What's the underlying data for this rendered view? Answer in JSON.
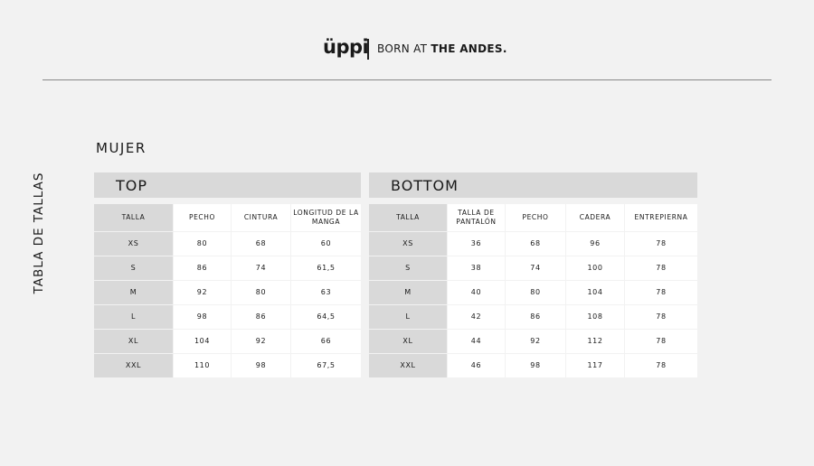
{
  "brand": {
    "logo": "üppi",
    "tagline_light": "BORN AT ",
    "tagline_bold": "THE ANDES."
  },
  "side_title": "TABLA DE TALLAS",
  "section_title": "MUJER",
  "top": {
    "title": "TOP",
    "headers": [
      "TALLA",
      "PECHO",
      "CINTURA",
      "LONGITUD DE LA MANGA"
    ],
    "rows": [
      [
        "XS",
        "80",
        "68",
        "60"
      ],
      [
        "S",
        "86",
        "74",
        "61,5"
      ],
      [
        "M",
        "92",
        "80",
        "63"
      ],
      [
        "L",
        "98",
        "86",
        "64,5"
      ],
      [
        "XL",
        "104",
        "92",
        "66"
      ],
      [
        "XXL",
        "110",
        "98",
        "67,5"
      ]
    ]
  },
  "bottom": {
    "title": "BOTTOM",
    "headers": [
      "TALLA",
      "TALLA DE PANTALÓN",
      "PECHO",
      "CADERA",
      "ENTREPIERNA"
    ],
    "rows": [
      [
        "XS",
        "36",
        "68",
        "96",
        "78"
      ],
      [
        "S",
        "38",
        "74",
        "100",
        "78"
      ],
      [
        "M",
        "40",
        "80",
        "104",
        "78"
      ],
      [
        "L",
        "42",
        "86",
        "108",
        "78"
      ],
      [
        "XL",
        "44",
        "92",
        "112",
        "78"
      ],
      [
        "XXL",
        "46",
        "98",
        "117",
        "78"
      ]
    ]
  }
}
